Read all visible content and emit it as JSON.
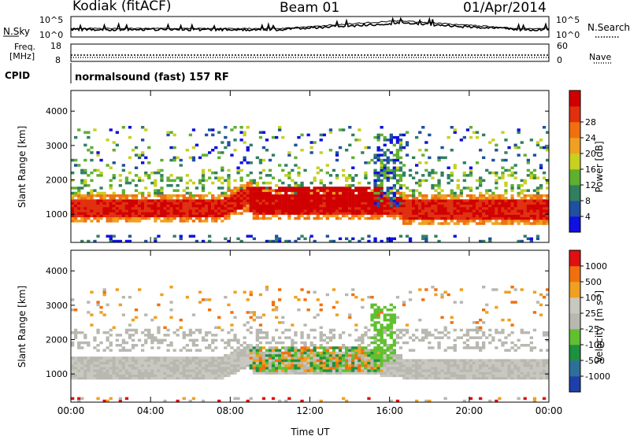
{
  "header": {
    "title": "Kodiak (fitACF)",
    "beam": "Beam 01",
    "date": "01/Apr/2014"
  },
  "noise_panel": {
    "left_label": "N.Sky",
    "right_label": "N.Search",
    "left_ticks": [
      "10^5",
      "10^0"
    ],
    "right_ticks": [
      "10^5",
      "10^0"
    ]
  },
  "freq_panel": {
    "left_label_1": "Freq.",
    "left_label_2": "[MHz]",
    "right_label": "Nave",
    "left_ticks": [
      "18",
      "8"
    ],
    "right_ticks": [
      "60",
      "0"
    ]
  },
  "cpid": {
    "label": "CPID",
    "text": "normalsound (fast) 157 RF"
  },
  "chart_data": [
    {
      "type": "heatmap",
      "title": "",
      "xlabel": "",
      "ylabel": "Slant Range [km]",
      "x_ticks": [
        "00:00",
        "04:00",
        "08:00",
        "12:00",
        "16:00",
        "20:00",
        "00:00"
      ],
      "y_ticks": [
        1000,
        2000,
        3000,
        4000
      ],
      "xlim": [
        0,
        24
      ],
      "ylim": [
        180,
        4600
      ],
      "colorbar": {
        "label": "Power [dB]",
        "ticks": [
          4,
          8,
          12,
          16,
          20,
          24,
          28
        ],
        "colors": [
          "#1010e0",
          "#2050a0",
          "#308060",
          "#60b030",
          "#c8d020",
          "#f0a020",
          "#f07010",
          "#e03010",
          "#d00000"
        ]
      },
      "features": [
        {
          "region": "persistent band",
          "t_start": 0,
          "t_end": 24,
          "range_start": 800,
          "range_end": 1450,
          "power_db": 27
        },
        {
          "region": "enhanced daytime echoes",
          "t_start": 9,
          "t_end": 15.5,
          "range_start": 900,
          "range_end": 1800,
          "power_db": 30
        }
      ]
    },
    {
      "type": "heatmap",
      "title": "",
      "xlabel": "Time UT",
      "ylabel": "Slant Range [km]",
      "x_ticks": [
        "00:00",
        "04:00",
        "08:00",
        "12:00",
        "16:00",
        "20:00",
        "00:00"
      ],
      "y_ticks": [
        1000,
        2000,
        3000,
        4000
      ],
      "xlim": [
        0,
        24
      ],
      "ylim": [
        180,
        4600
      ],
      "colorbar": {
        "label": "Velocity",
        "unit_base": "[m s",
        "unit_exp": "-1",
        "unit_close": "]",
        "ticks": [
          "1000",
          "500",
          "100",
          "25",
          "-25",
          "-100",
          "-500",
          "-1000"
        ],
        "colors": [
          "#1f3fa8",
          "#2e6f9a",
          "#1e9040",
          "#60c030",
          "#b8b8b0",
          "#c8c8c0",
          "#f0a020",
          "#f07010",
          "#e01010"
        ]
      },
      "features": [
        {
          "region": "ground scatter",
          "t_start": 0,
          "t_end": 24,
          "range_start": 750,
          "range_end": 1400,
          "velocity": 0
        },
        {
          "region": "ionospheric flow",
          "t_start": 9,
          "t_end": 15.5,
          "range_start": 1000,
          "range_end": 1800,
          "velocity": -150
        }
      ]
    }
  ]
}
